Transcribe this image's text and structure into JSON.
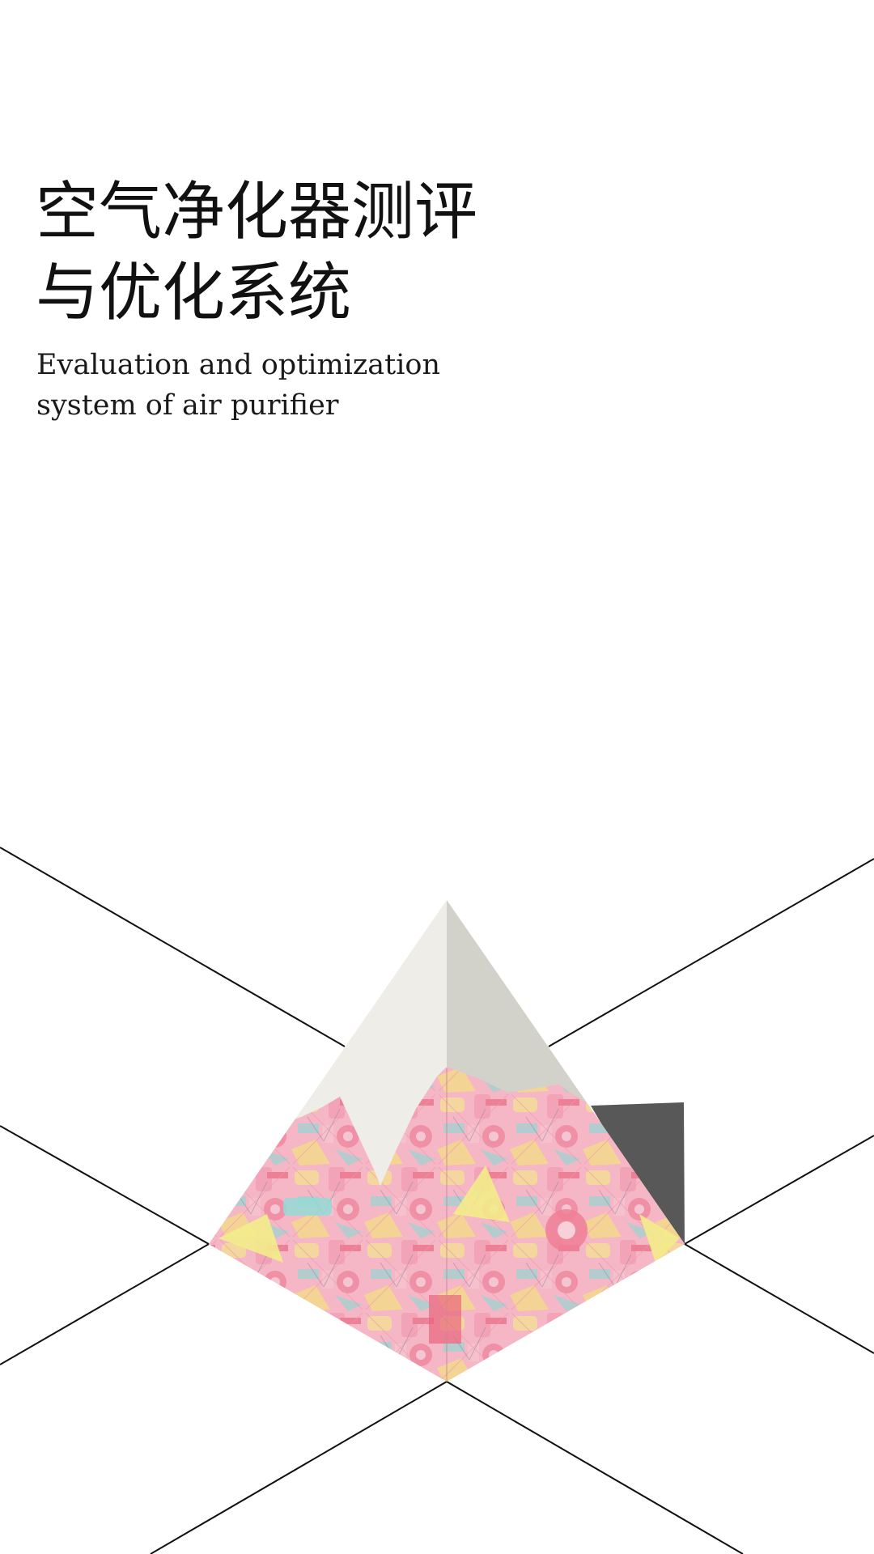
{
  "cover": {
    "title_lines": [
      "空气净化器测评",
      "与优化系统"
    ],
    "subtitle_lines": [
      "Evaluation and optimization",
      "system of air purifier"
    ]
  },
  "colors": {
    "background": "#ffffff",
    "text": "#111111",
    "line": "#111111",
    "pyramid_left_face": "#efede7",
    "pyramid_right_face": "#d3d2ca",
    "shadow": "#585858",
    "art_pink": "#f2a6b8",
    "art_yellow": "#f3ec8a",
    "art_cyan": "#8fd9d3",
    "art_red": "#e8667e"
  },
  "icons": [
    "pyramid-illustration",
    "geometric-line-background"
  ]
}
